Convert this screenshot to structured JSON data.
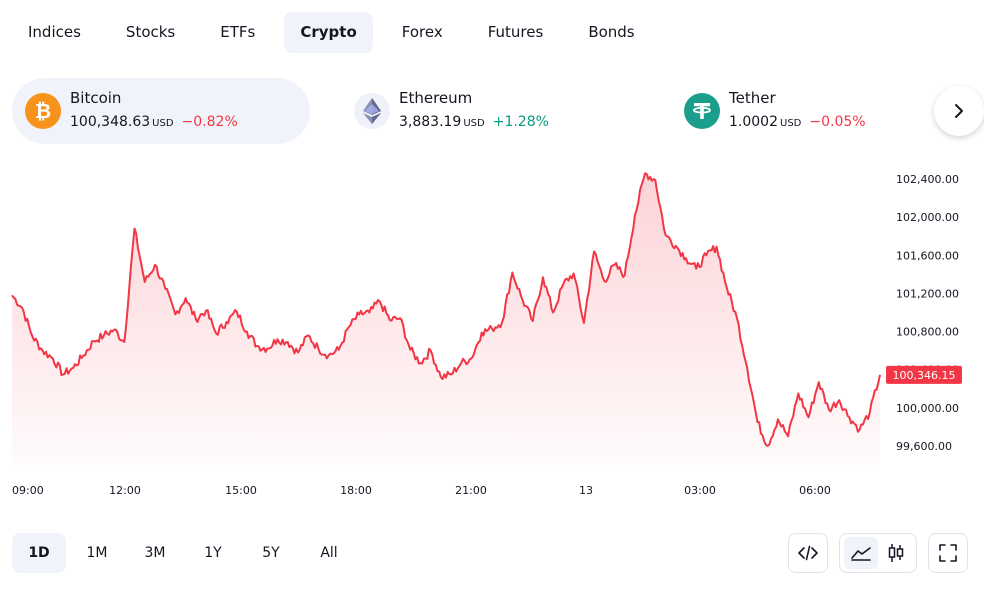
{
  "tabs": [
    {
      "label": "Indices",
      "active": false
    },
    {
      "label": "Stocks",
      "active": false
    },
    {
      "label": "ETFs",
      "active": false
    },
    {
      "label": "Crypto",
      "active": true
    },
    {
      "label": "Forex",
      "active": false
    },
    {
      "label": "Futures",
      "active": false
    },
    {
      "label": "Bonds",
      "active": false
    }
  ],
  "tickers": [
    {
      "name": "Bitcoin",
      "price": "100,348.63",
      "unit": "USD",
      "change": "−0.82%",
      "direction": "down",
      "icon": "bitcoin-icon",
      "icon_glyph": "₿",
      "icon_color": "#f7931a",
      "active": true
    },
    {
      "name": "Ethereum",
      "price": "3,883.19",
      "unit": "USD",
      "change": "+1.28%",
      "direction": "up",
      "icon": "ethereum-icon",
      "icon_color": "#627eea",
      "active": false
    },
    {
      "name": "Tether",
      "price": "1.0002",
      "unit": "USD",
      "change": "−0.05%",
      "direction": "down",
      "icon": "tether-icon",
      "icon_color": "#1b9e8b",
      "active": false
    }
  ],
  "colors": {
    "line": "#f23645",
    "accent_bg": "#f0f3fa",
    "up": "#089981",
    "down": "#f23645"
  },
  "chart_data": {
    "type": "area",
    "series": [
      {
        "values": [
          101180,
          101050,
          100750,
          100600,
          100520,
          100350,
          100420,
          100550,
          100700,
          100760,
          100820,
          100690,
          101880,
          101320,
          101500,
          101250,
          100980,
          101150,
          100930,
          101020,
          100780,
          100900,
          101010,
          100800,
          100650,
          100620,
          100720,
          100690,
          100580,
          100760,
          100620,
          100550,
          100610,
          100850,
          100980,
          101000,
          101120,
          100920,
          100940,
          100610,
          100470,
          100600,
          100320,
          100350,
          100470,
          100520,
          100790,
          100830,
          100900,
          101420,
          101130,
          100910,
          101370,
          101000,
          101300,
          101410,
          100890,
          101640,
          101330,
          101500,
          101390,
          102020,
          102460,
          102390,
          101810,
          101700,
          101570,
          101460,
          101600,
          101690,
          101260,
          100940,
          100420,
          99850,
          99600,
          99880,
          99700,
          100150,
          99900,
          100270,
          99980,
          100080,
          99900,
          99770,
          99950,
          100346
        ]
      }
    ],
    "x_ticks": [
      "09:00",
      "12:00",
      "15:00",
      "18:00",
      "21:00",
      "13",
      "03:00",
      "06:00"
    ],
    "y_ticks": [
      "99,600.00",
      "100,000.00",
      "100,400.00",
      "100,800.00",
      "101,200.00",
      "101,600.00",
      "102,000.00",
      "102,400.00"
    ],
    "ylim": [
      99400,
      102600
    ],
    "last_price_label": "100,346.15",
    "last_price": 100346
  },
  "ranges": [
    {
      "label": "1D",
      "active": true
    },
    {
      "label": "1M",
      "active": false
    },
    {
      "label": "3M",
      "active": false
    },
    {
      "label": "1Y",
      "active": false
    },
    {
      "label": "5Y",
      "active": false
    },
    {
      "label": "All",
      "active": false
    }
  ],
  "tools": {
    "embed_icon": "code-icon",
    "area_icon": "area-chart-icon",
    "candle_icon": "candles-icon",
    "fullscreen_icon": "fullscreen-icon"
  }
}
